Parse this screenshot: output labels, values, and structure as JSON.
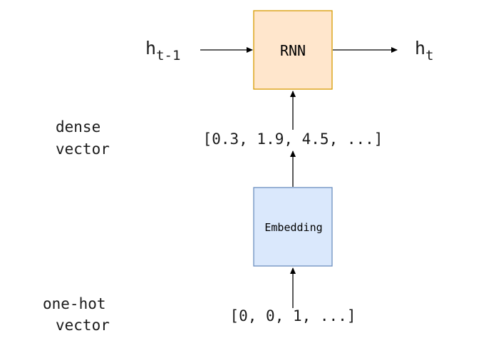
{
  "diagram": {
    "nodes": {
      "rnn": {
        "label": "RNN",
        "fill": "#ffe6cc",
        "stroke": "#d79b00"
      },
      "embedding": {
        "label": "Embedding",
        "fill": "#dae8fc",
        "stroke": "#6c8ebf"
      }
    },
    "h_prev": {
      "base": "h",
      "subscript": "t-1"
    },
    "h_next": {
      "base": "h",
      "subscript": "t"
    },
    "dense_vector": {
      "label_line1": "dense",
      "label_line2": "vector",
      "values": "[0.3, 1.9, 4.5, ...]"
    },
    "one_hot_vector": {
      "label_line1": "one-hot",
      "label_line2": "vector",
      "values": "[0, 0, 1, ...]"
    },
    "edges": [
      {
        "from": "h_prev",
        "to": "rnn"
      },
      {
        "from": "rnn",
        "to": "h_next"
      },
      {
        "from": "dense_vector",
        "to": "rnn"
      },
      {
        "from": "embedding",
        "to": "dense_vector"
      },
      {
        "from": "one_hot_vector",
        "to": "embedding"
      }
    ],
    "colors": {
      "arrow": "#000000",
      "text": "#1a1a1a"
    }
  }
}
